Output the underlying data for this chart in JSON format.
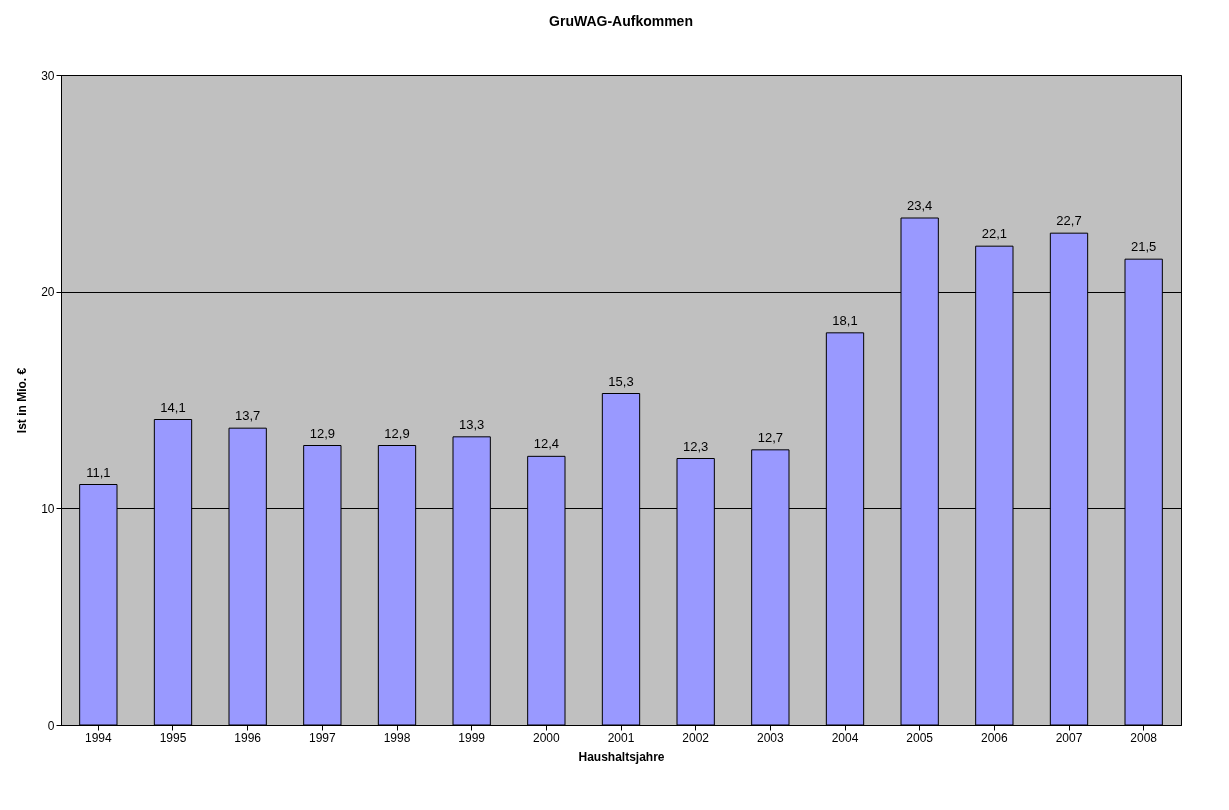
{
  "chart_data": {
    "type": "bar",
    "title": "GruWAG-Aufkommen",
    "xlabel": "Haushaltsjahre",
    "ylabel": "Ist in Mio. €",
    "categories": [
      "1994",
      "1995",
      "1996",
      "1997",
      "1998",
      "1999",
      "2000",
      "2001",
      "2002",
      "2003",
      "2004",
      "2005",
      "2006",
      "2007",
      "2008"
    ],
    "values": [
      11.1,
      14.1,
      13.7,
      12.9,
      12.9,
      13.3,
      12.4,
      15.3,
      12.3,
      12.7,
      18.1,
      23.4,
      22.1,
      22.7,
      21.5
    ],
    "value_labels": [
      "11,1",
      "14,1",
      "13,7",
      "12,9",
      "12,9",
      "13,3",
      "12,4",
      "15,3",
      "12,3",
      "12,7",
      "18,1",
      "23,4",
      "22,1",
      "22,7",
      "21,5"
    ],
    "color": "#9999ff",
    "ylim": [
      0,
      30
    ],
    "yticks": [
      0,
      10,
      20,
      30
    ],
    "grid": "y"
  }
}
